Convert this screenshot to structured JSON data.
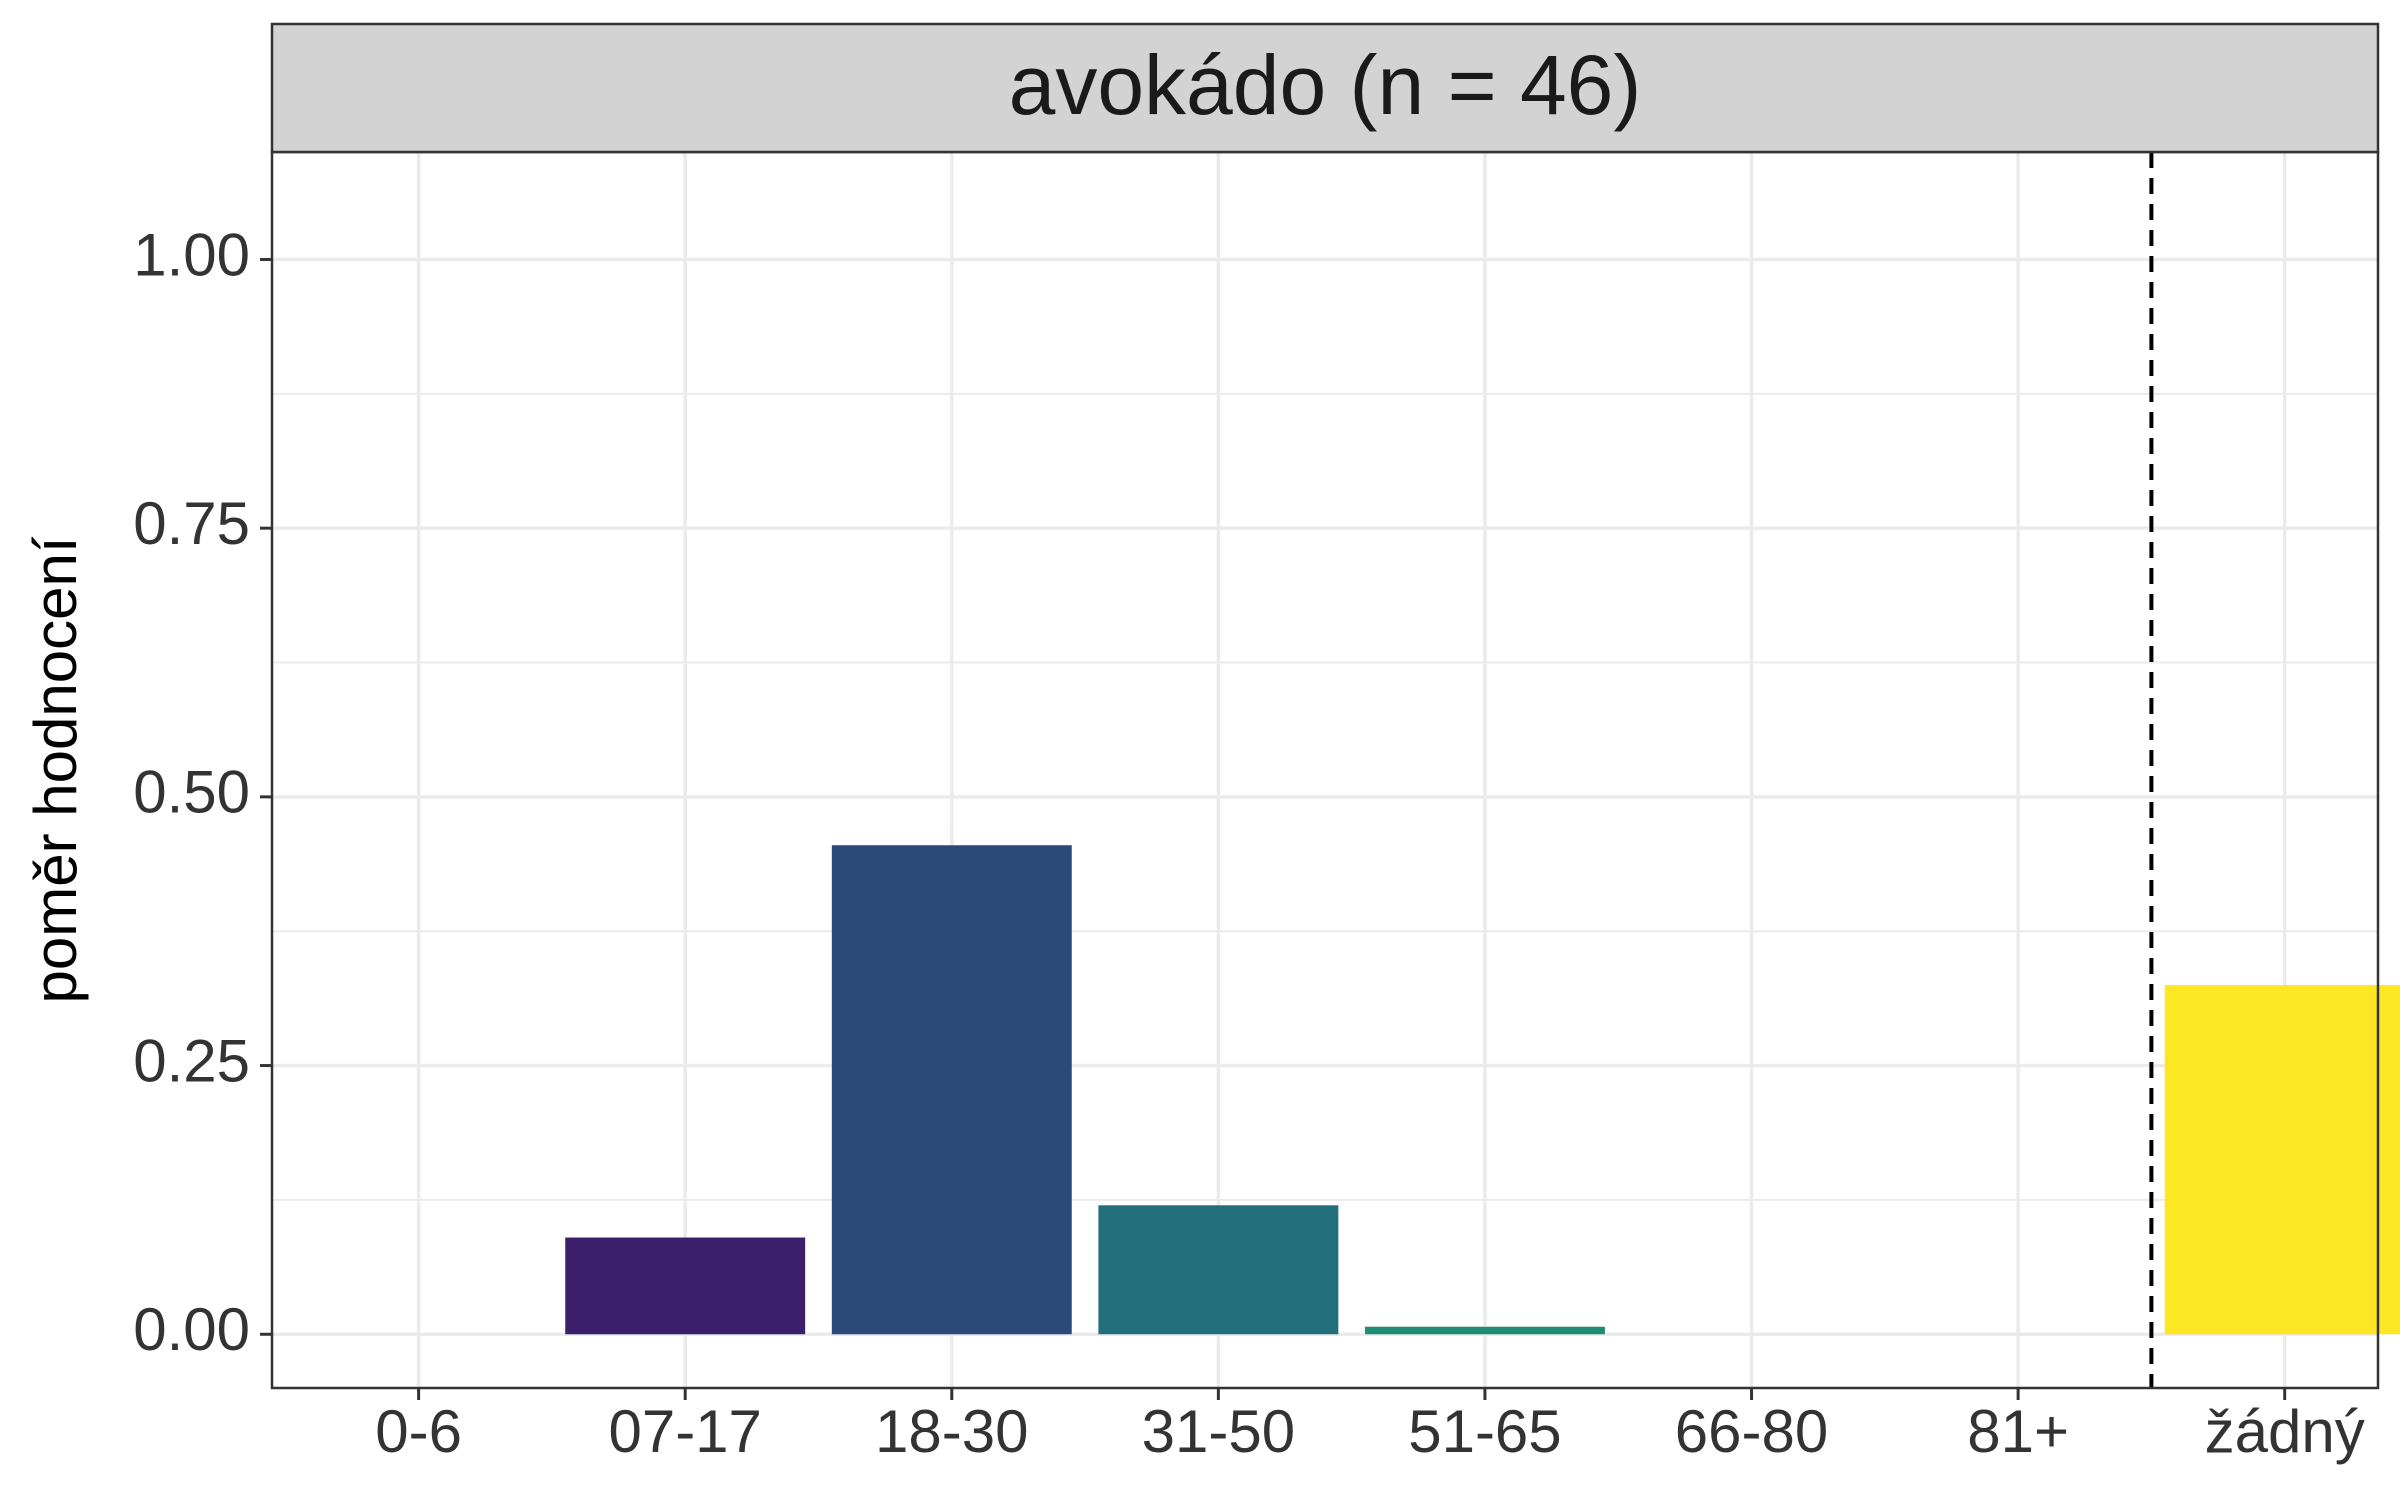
{
  "chart_data": {
    "type": "bar",
    "panel_title": "avokádo (n = 46)",
    "ylabel": "poměr hodnocení",
    "xlabel": "",
    "categories": [
      "0-6",
      "07-17",
      "18-30",
      "31-50",
      "51-65",
      "66-80",
      "81+",
      "žádný"
    ],
    "values": [
      0,
      0.09,
      0.455,
      0.12,
      0.007,
      0,
      0,
      0.325
    ],
    "colors": [
      "#440154",
      "#3B1F6B",
      "#2C4A79",
      "#226E7B",
      "#1F8C78",
      "#4FB768",
      "#A1D34A",
      "#FDE725"
    ],
    "ylim": [
      -0.05,
      1.1
    ],
    "y_ticks": [
      0,
      0.25,
      0.5,
      0.75,
      1.0
    ],
    "y_tick_labels": [
      "0.00",
      "0.25",
      "0.50",
      "0.75",
      "1.00"
    ],
    "separator": {
      "style": "dashed",
      "between": [
        "81+",
        "žádný"
      ]
    },
    "grid": true,
    "theme": "bw"
  }
}
